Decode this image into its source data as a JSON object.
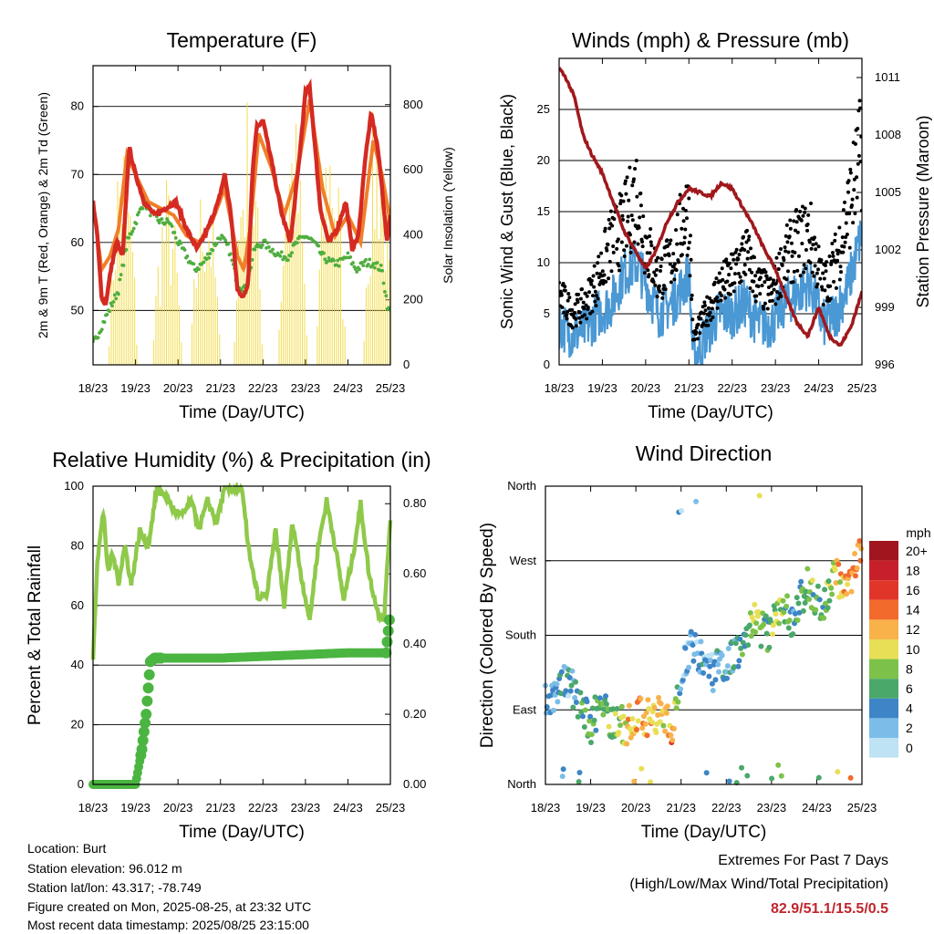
{
  "footer": {
    "location": "Location: Burt",
    "elevation": "Station elevation: 96.012 m",
    "latlon": "Station lat/lon: 43.317; -78.749",
    "created": "Figure created on Mon, 2025-08-25, at 23:32 UTC",
    "recent": "Most recent data timestamp: 2025/08/25 23:15:00",
    "extremes_title": "Extremes For Past 7 Days",
    "extremes_sub": "(High/Low/Max Wind/Total Precipitation)",
    "extremes_value": "82.9/51.1/15.5/0.5"
  },
  "colors": {
    "t2m": "#d42a22",
    "t9m": "#f07f2a",
    "td": "#4fae3f",
    "solar": "#f3dc4c",
    "wind": "#4a98d4",
    "gust": "#000000",
    "pressure": "#a0181c",
    "rh": "#8fc94a",
    "precip": "#4bb541"
  },
  "chart_data": [
    {
      "type": "line",
      "title": "Temperature (F)",
      "xlabel": "Time (Day/UTC)",
      "ylabel": "2m & 9m T (Red, Orange) & 2m Td (Green)",
      "y2label": "Solar Insolation (Yellow)",
      "x_ticks": [
        "18/23",
        "19/23",
        "20/23",
        "21/23",
        "22/23",
        "23/23",
        "24/23",
        "25/23"
      ],
      "ylim": [
        42,
        86
      ],
      "y_ticks": [
        50,
        60,
        70,
        80
      ],
      "y2lim": [
        0,
        920
      ],
      "y2_ticks": [
        0,
        200,
        400,
        600,
        800
      ],
      "grid": true,
      "series": [
        {
          "name": "2m T",
          "x": [
            0,
            0.1,
            0.2,
            0.3,
            0.42,
            0.55,
            0.7,
            0.85,
            1.0,
            1.2,
            1.45,
            1.7,
            1.95,
            2.2,
            2.45,
            2.7,
            2.95,
            3.1,
            3.25,
            3.4,
            3.55,
            3.65,
            3.75,
            3.85,
            4.0,
            4.2,
            4.45,
            4.65,
            4.85,
            5.0,
            5.1,
            5.2,
            5.35,
            5.55,
            5.75,
            5.95,
            6.1,
            6.25,
            6.4,
            6.55,
            6.7,
            6.82,
            6.92,
            7.0
          ],
          "values": [
            66,
            61,
            52,
            51,
            56,
            60,
            58,
            74,
            70,
            66,
            64,
            65,
            66,
            62,
            59,
            62,
            66,
            70,
            64,
            53,
            52,
            54,
            70,
            77,
            78,
            72,
            64,
            60,
            72,
            82,
            83,
            76,
            65,
            60,
            62,
            66,
            59,
            61,
            72,
            79,
            74,
            67,
            60,
            64
          ]
        },
        {
          "name": "9m T",
          "x": [
            0,
            0.2,
            0.4,
            0.6,
            0.8,
            1.0,
            1.3,
            1.6,
            1.9,
            2.2,
            2.5,
            2.8,
            3.1,
            3.4,
            3.55,
            3.7,
            3.9,
            4.2,
            4.5,
            4.8,
            5.1,
            5.4,
            5.7,
            6.0,
            6.3,
            6.6,
            6.8,
            7.0
          ],
          "values": [
            66,
            56,
            58,
            62,
            73,
            70,
            66,
            65,
            64,
            61,
            60,
            63,
            68,
            58,
            56,
            62,
            76,
            71,
            64,
            70,
            81,
            68,
            61,
            64,
            60,
            75,
            70,
            63
          ]
        },
        {
          "name": "2m Td",
          "x": [
            0,
            0.15,
            0.3,
            0.45,
            0.6,
            0.8,
            1.0,
            1.2,
            1.4,
            1.6,
            1.8,
            2.0,
            2.2,
            2.4,
            2.6,
            2.8,
            3.0,
            3.2,
            3.4,
            3.6,
            3.8,
            4.0,
            4.2,
            4.4,
            4.6,
            4.8,
            5.0,
            5.2,
            5.4,
            5.6,
            5.8,
            6.0,
            6.2,
            6.4,
            6.6,
            6.8,
            6.95
          ],
          "values": [
            45,
            47,
            49,
            51,
            53,
            60,
            63,
            66,
            64,
            63,
            63,
            60,
            58,
            56,
            57,
            59,
            61,
            59,
            54,
            53,
            59,
            60,
            59,
            58,
            58,
            60,
            61,
            60,
            58,
            57,
            57,
            58,
            56,
            57,
            57,
            56,
            50
          ]
        },
        {
          "name": "Solar",
          "axis": "y2",
          "peaks": [
            0.7,
            1.75,
            2.65,
            3.65,
            4.7,
            5.6,
            6.7
          ],
          "peak_values": [
            770,
            600,
            640,
            860,
            830,
            840,
            880
          ]
        }
      ]
    },
    {
      "type": "scatter",
      "title": "Winds (mph) & Pressure (mb)",
      "xlabel": "Time (Day/UTC)",
      "ylabel": "Sonic Wind & Gust (Blue, Black)",
      "y2label": "Station Pressure (Maroon)",
      "x_ticks": [
        "18/23",
        "19/23",
        "20/23",
        "21/23",
        "22/23",
        "23/23",
        "24/23",
        "25/23"
      ],
      "ylim": [
        0,
        30
      ],
      "y_ticks": [
        0,
        5,
        10,
        15,
        20,
        25
      ],
      "y2lim": [
        996,
        1012
      ],
      "y2_ticks": [
        996,
        999,
        1002,
        1005,
        1008,
        1011
      ],
      "grid": true,
      "wind_knots": {
        "x": [
          0,
          0.3,
          0.6,
          0.9,
          1.2,
          1.5,
          1.8,
          2.0,
          2.3,
          2.6,
          2.9,
          3.0,
          3.1,
          3.4,
          3.7,
          4.0,
          4.3,
          4.6,
          4.9,
          5.2,
          5.5,
          5.8,
          6.1,
          6.4,
          6.7,
          7.0
        ],
        "values": [
          4,
          3,
          3.5,
          5,
          6,
          9,
          10,
          8,
          5,
          6,
          8,
          9,
          0.5,
          3,
          5,
          5,
          6,
          4,
          4,
          6,
          7,
          8,
          4,
          5,
          8,
          13
        ]
      },
      "gust_knots": {
        "x": [
          0,
          0.3,
          0.6,
          0.9,
          1.2,
          1.5,
          1.8,
          2.0,
          2.3,
          2.6,
          2.9,
          3.0,
          3.1,
          3.4,
          3.7,
          4.0,
          4.3,
          4.6,
          4.9,
          5.2,
          5.5,
          5.8,
          6.1,
          6.4,
          6.7,
          7.0
        ],
        "values": [
          8,
          6,
          7,
          10,
          14,
          16,
          20,
          14,
          10,
          12,
          17,
          18,
          3,
          6,
          9,
          10,
          13,
          9,
          8,
          12,
          14,
          15,
          9,
          12,
          18,
          25
        ]
      },
      "pressure": {
        "x": [
          0,
          0.15,
          0.35,
          0.55,
          0.75,
          1.0,
          1.25,
          1.5,
          1.75,
          2.0,
          2.25,
          2.5,
          2.75,
          3.0,
          3.25,
          3.5,
          3.75,
          4.0,
          4.25,
          4.5,
          4.75,
          5.0,
          5.25,
          5.5,
          5.75,
          6.0,
          6.25,
          6.5,
          6.75,
          7.0
        ],
        "values": [
          1011.5,
          1011,
          1010,
          1008,
          1007,
          1006,
          1004.5,
          1003,
          1002,
          1001,
          1002,
          1003.5,
          1004.5,
          1005.2,
          1005,
          1004.8,
          1005.5,
          1005.2,
          1004.2,
          1003.2,
          1002,
          1001,
          999.5,
          998.2,
          997.5,
          999,
          997.5,
          997,
          998,
          999.8
        ]
      }
    },
    {
      "type": "line",
      "title": "Relative Humidity (%) & Precipitation (in)",
      "xlabel": "Time (Day/UTC)",
      "ylabel": "Percent & Total Rainfall",
      "x_ticks": [
        "18/23",
        "19/23",
        "20/23",
        "21/23",
        "22/23",
        "23/23",
        "24/23",
        "25/23"
      ],
      "ylim": [
        0,
        100
      ],
      "y_ticks": [
        0,
        20,
        40,
        60,
        80,
        100
      ],
      "y2lim": [
        0,
        0.85
      ],
      "y2_ticks": [
        "0.00",
        "0.20",
        "0.40",
        "0.60",
        "0.80"
      ],
      "grid": true,
      "series": [
        {
          "name": "RH",
          "x": [
            0,
            0.1,
            0.25,
            0.35,
            0.45,
            0.6,
            0.75,
            0.9,
            1.1,
            1.3,
            1.5,
            1.7,
            1.9,
            2.1,
            2.3,
            2.5,
            2.7,
            2.9,
            3.1,
            3.3,
            3.5,
            3.7,
            3.9,
            4.1,
            4.3,
            4.5,
            4.7,
            4.9,
            5.1,
            5.3,
            5.5,
            5.7,
            5.9,
            6.1,
            6.3,
            6.5,
            6.7,
            6.85,
            7.0
          ],
          "values": [
            43,
            75,
            92,
            70,
            78,
            68,
            80,
            67,
            85,
            80,
            99,
            97,
            92,
            90,
            95,
            86,
            95,
            88,
            99,
            99,
            99,
            75,
            62,
            64,
            85,
            60,
            88,
            70,
            55,
            80,
            95,
            80,
            62,
            75,
            94,
            70,
            58,
            55,
            90
          ]
        },
        {
          "name": "Precip",
          "axis": "y2",
          "x": [
            0,
            0.5,
            1.0,
            1.15,
            1.25,
            1.35,
            1.45,
            1.6,
            2.0,
            3.0,
            4.0,
            5.0,
            6.0,
            6.9,
            7.0
          ],
          "values": [
            0,
            0,
            0,
            0.1,
            0.2,
            0.35,
            0.36,
            0.36,
            0.36,
            0.36,
            0.365,
            0.37,
            0.375,
            0.375,
            0.5
          ]
        }
      ]
    },
    {
      "type": "scatter",
      "title": "Wind Direction",
      "xlabel": "Time (Day/UTC)",
      "ylabel": "Direction (Colored By Speed)",
      "x_ticks": [
        "18/23",
        "19/23",
        "20/23",
        "21/23",
        "22/23",
        "23/23",
        "24/23",
        "25/23"
      ],
      "y_ticks": [
        "North",
        "East",
        "South",
        "West",
        "North"
      ],
      "ylim": [
        0,
        360
      ],
      "grid": true,
      "legend_title": "mph",
      "legend_labels": [
        "0",
        "2",
        "4",
        "6",
        "8",
        "10",
        "12",
        "14",
        "16",
        "18",
        "20+"
      ],
      "legend_colors": [
        "#bde3f5",
        "#7bbde8",
        "#3d85c6",
        "#4aa86a",
        "#7cc24a",
        "#e8df56",
        "#f9b14a",
        "#f26a2c",
        "#e2352a",
        "#c8202a",
        "#a1151e"
      ],
      "knots": {
        "x": [
          0,
          0.5,
          0.8,
          1.0,
          1.2,
          1.5,
          1.8,
          2.0,
          2.3,
          2.6,
          2.8,
          3.0,
          3.2,
          3.5,
          3.7,
          4.0,
          4.3,
          4.6,
          4.9,
          5.2,
          5.5,
          5.8,
          6.1,
          6.4,
          6.7,
          7.0
        ],
        "values": [
          100,
          125,
          95,
          70,
          100,
          75,
          70,
          85,
          80,
          90,
          60,
          140,
          165,
          155,
          135,
          150,
          160,
          200,
          180,
          210,
          200,
          245,
          210,
          250,
          240,
          280
        ],
        "speeds": [
          3,
          3,
          5,
          7,
          6,
          7,
          11,
          12,
          11,
          11,
          13,
          2,
          2,
          3,
          3,
          4,
          4,
          9,
          6,
          8,
          4,
          8,
          5,
          10,
          13,
          14
        ]
      }
    }
  ]
}
